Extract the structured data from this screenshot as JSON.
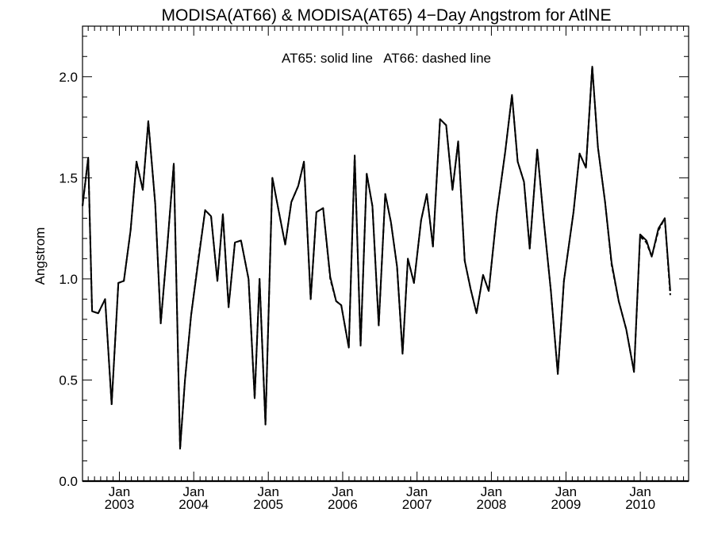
{
  "chart_data": {
    "type": "line",
    "title": "MODISA(AT66) & MODISA(AT65) 4−Day Angstrom for AtlNE",
    "annotation": "AT65: solid line   AT66: dashed line",
    "ylabel": "Angstrom",
    "xlabel": "",
    "ylim": [
      0.0,
      2.25
    ],
    "xlim": [
      "2002-07-04",
      "2010-08-26"
    ],
    "y_ticks": [
      "0.0",
      "0.5",
      "1.0",
      "1.5",
      "2.0"
    ],
    "x_ticks": [
      {
        "date": "2003-01-01",
        "month": "Jan",
        "year": "2003"
      },
      {
        "date": "2004-01-01",
        "month": "Jan",
        "year": "2004"
      },
      {
        "date": "2005-01-01",
        "month": "Jan",
        "year": "2005"
      },
      {
        "date": "2006-01-01",
        "month": "Jan",
        "year": "2006"
      },
      {
        "date": "2007-01-01",
        "month": "Jan",
        "year": "2007"
      },
      {
        "date": "2008-01-01",
        "month": "Jan",
        "year": "2008"
      },
      {
        "date": "2009-01-01",
        "month": "Jan",
        "year": "2009"
      },
      {
        "date": "2010-01-01",
        "month": "Jan",
        "year": "2010"
      }
    ],
    "grid": false,
    "series": [
      {
        "name": "AT65",
        "style": "solid",
        "color": "#000000",
        "points": [
          [
            "2002-07-04",
            1.36
          ],
          [
            "2002-08-01",
            1.6
          ],
          [
            "2002-08-20",
            0.84
          ],
          [
            "2002-09-19",
            0.83
          ],
          [
            "2002-10-23",
            0.9
          ],
          [
            "2002-11-24",
            0.38
          ],
          [
            "2002-12-27",
            0.98
          ],
          [
            "2003-01-23",
            0.99
          ],
          [
            "2003-02-25",
            1.24
          ],
          [
            "2003-03-26",
            1.58
          ],
          [
            "2003-04-26",
            1.44
          ],
          [
            "2003-05-23",
            1.78
          ],
          [
            "2003-06-26",
            1.37
          ],
          [
            "2003-07-23",
            0.78
          ],
          [
            "2003-08-24",
            1.16
          ],
          [
            "2003-09-25",
            1.57
          ],
          [
            "2003-10-26",
            0.16
          ],
          [
            "2003-11-19",
            0.5
          ],
          [
            "2003-12-19",
            0.82
          ],
          [
            "2004-01-25",
            1.1
          ],
          [
            "2004-02-26",
            1.34
          ],
          [
            "2004-03-26",
            1.31
          ],
          [
            "2004-04-26",
            0.99
          ],
          [
            "2004-05-23",
            1.32
          ],
          [
            "2004-06-20",
            0.86
          ],
          [
            "2004-07-21",
            1.18
          ],
          [
            "2004-08-20",
            1.19
          ],
          [
            "2004-09-26",
            1.0
          ],
          [
            "2004-10-26",
            0.41
          ],
          [
            "2004-11-19",
            1.0
          ],
          [
            "2004-12-18",
            0.28
          ],
          [
            "2005-01-21",
            1.5
          ],
          [
            "2005-02-26",
            1.31
          ],
          [
            "2005-03-25",
            1.17
          ],
          [
            "2005-04-24",
            1.38
          ],
          [
            "2005-05-28",
            1.46
          ],
          [
            "2005-06-25",
            1.58
          ],
          [
            "2005-07-28",
            0.9
          ],
          [
            "2005-08-25",
            1.33
          ],
          [
            "2005-09-27",
            1.35
          ],
          [
            "2005-11-01",
            1.01
          ],
          [
            "2005-11-30",
            0.89
          ],
          [
            "2005-12-25",
            0.87
          ],
          [
            "2006-01-31",
            0.66
          ],
          [
            "2006-03-01",
            1.61
          ],
          [
            "2006-03-30",
            0.67
          ],
          [
            "2006-04-29",
            1.52
          ],
          [
            "2006-05-27",
            1.36
          ],
          [
            "2006-06-27",
            0.77
          ],
          [
            "2006-07-29",
            1.42
          ],
          [
            "2006-08-26",
            1.28
          ],
          [
            "2006-09-25",
            1.06
          ],
          [
            "2006-10-22",
            0.63
          ],
          [
            "2006-11-17",
            1.1
          ],
          [
            "2006-12-17",
            0.98
          ],
          [
            "2007-01-21",
            1.29
          ],
          [
            "2007-02-18",
            1.42
          ],
          [
            "2007-03-20",
            1.16
          ],
          [
            "2007-04-24",
            1.79
          ],
          [
            "2007-05-24",
            1.76
          ],
          [
            "2007-06-24",
            1.44
          ],
          [
            "2007-07-22",
            1.68
          ],
          [
            "2007-08-23",
            1.09
          ],
          [
            "2007-09-21",
            0.95
          ],
          [
            "2007-10-20",
            0.83
          ],
          [
            "2007-11-21",
            1.02
          ],
          [
            "2007-12-19",
            0.94
          ],
          [
            "2008-01-27",
            1.32
          ],
          [
            "2008-03-09",
            1.63
          ],
          [
            "2008-04-11",
            1.91
          ],
          [
            "2008-05-09",
            1.58
          ],
          [
            "2008-06-09",
            1.48
          ],
          [
            "2008-07-07",
            1.15
          ],
          [
            "2008-08-13",
            1.64
          ],
          [
            "2008-09-13",
            1.3
          ],
          [
            "2008-10-19",
            0.94
          ],
          [
            "2008-11-22",
            0.53
          ],
          [
            "2008-12-22",
            0.99
          ],
          [
            "2009-02-07",
            1.33
          ],
          [
            "2009-03-09",
            1.62
          ],
          [
            "2009-04-09",
            1.55
          ],
          [
            "2009-05-10",
            2.05
          ],
          [
            "2009-06-07",
            1.65
          ],
          [
            "2009-07-12",
            1.38
          ],
          [
            "2009-08-13",
            1.08
          ],
          [
            "2009-09-17",
            0.89
          ],
          [
            "2009-10-24",
            0.75
          ],
          [
            "2009-12-01",
            0.54
          ],
          [
            "2009-12-31",
            1.22
          ],
          [
            "2010-01-31",
            1.19
          ],
          [
            "2010-02-26",
            1.11
          ],
          [
            "2010-03-31",
            1.25
          ],
          [
            "2010-05-01",
            1.3
          ],
          [
            "2010-05-28",
            0.94
          ]
        ]
      },
      {
        "name": "AT66",
        "style": "dashed",
        "color": "#000000",
        "points": [
          [
            "2002-07-04",
            1.36
          ],
          [
            "2002-08-01",
            1.6
          ],
          [
            "2002-08-20",
            0.84
          ],
          [
            "2002-09-19",
            0.83
          ],
          [
            "2002-10-23",
            0.9
          ],
          [
            "2002-11-24",
            0.38
          ],
          [
            "2002-12-27",
            0.98
          ],
          [
            "2003-01-23",
            0.99
          ],
          [
            "2003-02-25",
            1.24
          ],
          [
            "2003-03-26",
            1.58
          ],
          [
            "2003-04-26",
            1.44
          ],
          [
            "2003-05-23",
            1.78
          ],
          [
            "2003-06-26",
            1.37
          ],
          [
            "2003-07-23",
            0.78
          ],
          [
            "2003-08-24",
            1.16
          ],
          [
            "2003-09-25",
            1.57
          ],
          [
            "2003-10-26",
            0.16
          ],
          [
            "2003-11-19",
            0.5
          ],
          [
            "2003-12-19",
            0.82
          ],
          [
            "2004-01-25",
            1.11
          ],
          [
            "2004-02-26",
            1.34
          ],
          [
            "2004-03-26",
            1.31
          ],
          [
            "2004-04-26",
            0.99
          ],
          [
            "2004-05-23",
            1.32
          ],
          [
            "2004-06-20",
            0.86
          ],
          [
            "2004-07-21",
            1.18
          ],
          [
            "2004-08-20",
            1.19
          ],
          [
            "2004-09-26",
            1.0
          ],
          [
            "2004-10-26",
            0.41
          ],
          [
            "2004-11-19",
            1.0
          ],
          [
            "2004-12-18",
            0.28
          ],
          [
            "2005-01-21",
            1.5
          ],
          [
            "2005-02-26",
            1.31
          ],
          [
            "2005-03-25",
            1.17
          ],
          [
            "2005-04-24",
            1.38
          ],
          [
            "2005-05-28",
            1.46
          ],
          [
            "2005-06-25",
            1.58
          ],
          [
            "2005-07-28",
            0.9
          ],
          [
            "2005-08-25",
            1.33
          ],
          [
            "2005-09-27",
            1.35
          ],
          [
            "2005-11-01",
            1.0
          ],
          [
            "2005-11-30",
            0.89
          ],
          [
            "2005-12-25",
            0.87
          ],
          [
            "2006-01-31",
            0.66
          ],
          [
            "2006-03-01",
            1.61
          ],
          [
            "2006-03-30",
            0.67
          ],
          [
            "2006-04-29",
            1.52
          ],
          [
            "2006-05-27",
            1.36
          ],
          [
            "2006-06-27",
            0.77
          ],
          [
            "2006-07-29",
            1.42
          ],
          [
            "2006-08-26",
            1.28
          ],
          [
            "2006-09-25",
            1.06
          ],
          [
            "2006-10-22",
            0.63
          ],
          [
            "2006-11-17",
            1.1
          ],
          [
            "2006-12-17",
            0.98
          ],
          [
            "2007-01-21",
            1.29
          ],
          [
            "2007-02-18",
            1.42
          ],
          [
            "2007-03-20",
            1.16
          ],
          [
            "2007-04-24",
            1.79
          ],
          [
            "2007-05-24",
            1.76
          ],
          [
            "2007-06-24",
            1.44
          ],
          [
            "2007-07-22",
            1.68
          ],
          [
            "2007-08-23",
            1.09
          ],
          [
            "2007-09-21",
            0.95
          ],
          [
            "2007-10-20",
            0.83
          ],
          [
            "2007-11-21",
            1.02
          ],
          [
            "2007-12-19",
            0.94
          ],
          [
            "2008-01-27",
            1.32
          ],
          [
            "2008-03-09",
            1.63
          ],
          [
            "2008-04-11",
            1.91
          ],
          [
            "2008-05-09",
            1.58
          ],
          [
            "2008-06-09",
            1.48
          ],
          [
            "2008-07-07",
            1.15
          ],
          [
            "2008-08-13",
            1.64
          ],
          [
            "2008-09-13",
            1.3
          ],
          [
            "2008-10-19",
            0.94
          ],
          [
            "2008-11-22",
            0.53
          ],
          [
            "2008-12-22",
            0.99
          ],
          [
            "2009-02-07",
            1.33
          ],
          [
            "2009-03-09",
            1.62
          ],
          [
            "2009-04-09",
            1.55
          ],
          [
            "2009-05-10",
            2.05
          ],
          [
            "2009-06-07",
            1.65
          ],
          [
            "2009-07-12",
            1.38
          ],
          [
            "2009-08-13",
            1.07
          ],
          [
            "2009-09-17",
            0.89
          ],
          [
            "2009-10-24",
            0.75
          ],
          [
            "2009-12-01",
            0.54
          ],
          [
            "2009-12-31",
            1.21
          ],
          [
            "2010-01-31",
            1.18
          ],
          [
            "2010-02-26",
            1.11
          ],
          [
            "2010-03-31",
            1.24
          ],
          [
            "2010-05-01",
            1.3
          ],
          [
            "2010-05-28",
            0.92
          ]
        ]
      }
    ]
  }
}
